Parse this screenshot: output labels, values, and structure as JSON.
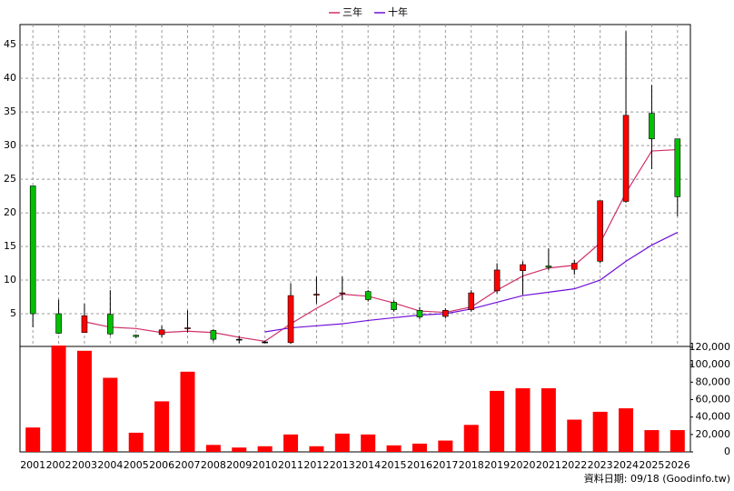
{
  "chart_data": [
    {
      "type": "candlestick",
      "categories": [
        "2001",
        "2002",
        "2003",
        "2004",
        "2005",
        "2006",
        "2007",
        "2008",
        "2009",
        "2010",
        "2011",
        "2012",
        "2013",
        "2014",
        "2015",
        "2016",
        "2017",
        "2018",
        "2019",
        "2020",
        "2021",
        "2022",
        "2023",
        "2024",
        "2025",
        "2026"
      ],
      "open": [
        24,
        5,
        2.2,
        4.9,
        1.8,
        1.9,
        2.8,
        2.5,
        1.2,
        0.8,
        0.7,
        7.8,
        8,
        8.3,
        6.7,
        5.5,
        4.6,
        5.6,
        8.4,
        11.4,
        12.1,
        11.6,
        12.8,
        21.7,
        34.8,
        31
      ],
      "high": [
        24,
        7.1,
        6.5,
        8.5,
        1.9,
        3.2,
        5.5,
        2.7,
        1.7,
        1,
        9.5,
        10.5,
        10.5,
        8.5,
        7,
        6,
        5.8,
        8.5,
        12.5,
        12.8,
        14.7,
        13,
        21.8,
        47,
        39,
        31
      ],
      "low": [
        3,
        2,
        2.2,
        1.8,
        1.4,
        1.5,
        2.2,
        0.9,
        0.6,
        0.6,
        0.5,
        6.5,
        7,
        6.8,
        5.3,
        4.2,
        4.3,
        5.3,
        8,
        7.8,
        11.5,
        10.8,
        12.5,
        21.5,
        26.5,
        19.5
      ],
      "close": [
        5,
        2.1,
        4.7,
        2,
        1.6,
        2.6,
        2.9,
        1.2,
        1.2,
        0.8,
        7.7,
        7.9,
        8.1,
        7.1,
        5.6,
        4.5,
        5.5,
        8.1,
        11.5,
        12.3,
        11.9,
        12.5,
        21.8,
        34.5,
        31,
        22.4
      ],
      "up_color": "#ff0000",
      "down_color": "#00c000",
      "series": [
        {
          "name": "三年",
          "color": "#d0306a",
          "values": [
            null,
            null,
            3.8,
            3,
            2.8,
            2.2,
            2.4,
            2.2,
            1.5,
            0.9,
            3.5,
            5.8,
            7.9,
            7.6,
            6.6,
            5.4,
            5.2,
            6,
            8.5,
            10.6,
            11.8,
            12.2,
            15.5,
            23,
            29.2,
            29.4
          ]
        },
        {
          "name": "十年",
          "color": "#7010d8",
          "values": [
            null,
            null,
            null,
            null,
            null,
            null,
            null,
            null,
            null,
            2.3,
            2.9,
            3.2,
            3.5,
            4,
            4.4,
            4.8,
            5,
            5.7,
            6.7,
            7.7,
            8.2,
            8.7,
            10,
            12.8,
            15.2,
            17.1
          ]
        }
      ],
      "ylim": [
        0,
        48
      ],
      "yticks": [
        5,
        10,
        15,
        20,
        25,
        30,
        35,
        40,
        45
      ],
      "grid": true,
      "legend": "top"
    },
    {
      "type": "bar",
      "values": [
        28000,
        122000,
        116000,
        85000,
        22000,
        58000,
        92000,
        8000,
        5000,
        6500,
        20000,
        6500,
        21000,
        20000,
        7500,
        9500,
        13000,
        31000,
        70000,
        73000,
        73000,
        37000,
        46000,
        50000,
        25000,
        25000
      ],
      "color": "#ff0000",
      "ylim": [
        0,
        121000
      ],
      "yticks": [
        0,
        {
          "value": 20000,
          "label": "20,000"
        },
        {
          "value": 40000,
          "label": "40,000"
        },
        {
          "value": 60000,
          "label": "60,000"
        },
        {
          "value": 80000,
          "label": "80,000"
        },
        {
          "value": 100000,
          "label": "100,000"
        },
        {
          "value": 120000,
          "label": "120,000"
        }
      ]
    }
  ],
  "footer": "資料日期: 09/18 (Goodinfo.tw)"
}
